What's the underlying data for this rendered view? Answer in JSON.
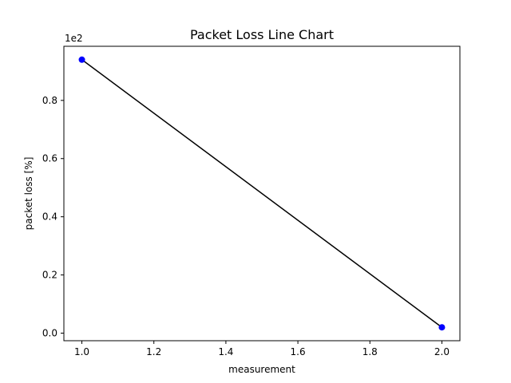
{
  "chart_data": {
    "type": "line",
    "title": "Packet Loss Line Chart",
    "xlabel": "measurement",
    "ylabel": "packet loss [%]",
    "offset_text": "1e2",
    "x": [
      1.0,
      2.0
    ],
    "series": [
      {
        "values": [
          0.94,
          0.02
        ],
        "line_color": "#000000",
        "marker_color": "#0000ff"
      }
    ],
    "xlim": [
      0.95,
      2.05
    ],
    "ylim": [
      -0.026,
      0.986
    ],
    "xticks": [
      1.0,
      1.2,
      1.4,
      1.6,
      1.8,
      2.0
    ],
    "xtick_labels": [
      "1.0",
      "1.2",
      "1.4",
      "1.6",
      "1.8",
      "2.0"
    ],
    "yticks": [
      0.0,
      0.2,
      0.4,
      0.6,
      0.8
    ],
    "ytick_labels": [
      "0.0",
      "0.2",
      "0.4",
      "0.6",
      "0.8"
    ],
    "grid": false,
    "legend": "none"
  }
}
